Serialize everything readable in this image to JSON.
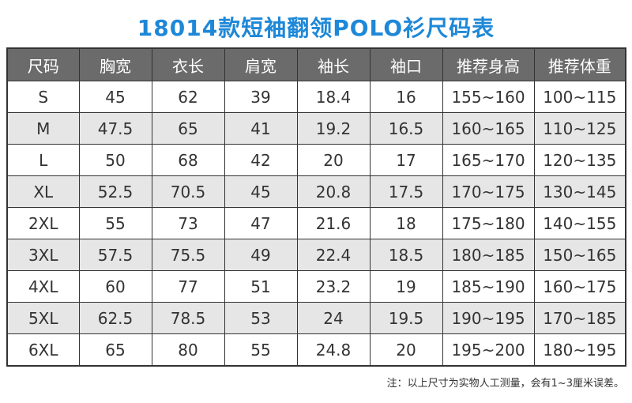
{
  "title": "18014款短袖翻领POLO衫尺码表",
  "headers": [
    "尺码",
    "胸宽",
    "衣长",
    "肩宽",
    "袖长",
    "袖口",
    "推荐身高",
    "推荐体重"
  ],
  "rows": [
    [
      "S",
      "45",
      "62",
      "39",
      "18.4",
      "16",
      "155~160",
      "100~115"
    ],
    [
      "M",
      "47.5",
      "65",
      "41",
      "19.2",
      "16.5",
      "160~165",
      "110~125"
    ],
    [
      "L",
      "50",
      "68",
      "42",
      "20",
      "17",
      "165~170",
      "120~135"
    ],
    [
      "XL",
      "52.5",
      "70.5",
      "45",
      "20.8",
      "17.5",
      "170~175",
      "130~145"
    ],
    [
      "2XL",
      "55",
      "73",
      "47",
      "21.6",
      "18",
      "175~180",
      "140~155"
    ],
    [
      "3XL",
      "57.5",
      "75.5",
      "49",
      "22.4",
      "18.5",
      "180~185",
      "150~165"
    ],
    [
      "4XL",
      "60",
      "77",
      "51",
      "23.2",
      "19",
      "185~190",
      "160~175"
    ],
    [
      "5XL",
      "62.5",
      "78.5",
      "53",
      "24",
      "19.5",
      "190~195",
      "170~185"
    ],
    [
      "6XL",
      "65",
      "80",
      "55",
      "24.8",
      "20",
      "195~200",
      "180~195"
    ]
  ],
  "note": "注：以上尺寸为实物人工测量，会有1~3厘米误差。",
  "colors": {
    "title": "#1e88d8",
    "header_bg": "#6b6b6b",
    "stripe": "#e6e6e6"
  }
}
